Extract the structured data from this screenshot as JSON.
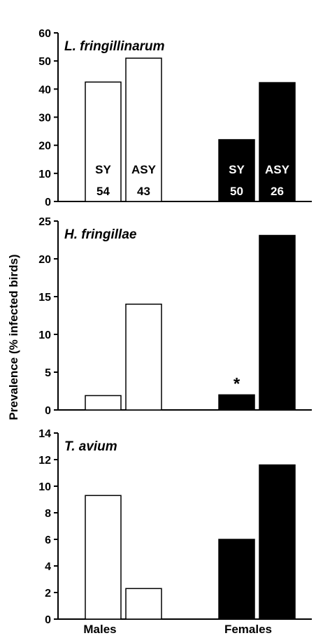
{
  "figure": {
    "ylabel": "Prevalence (% infected birds)",
    "group_labels": [
      "Males",
      "Females"
    ]
  },
  "colors": {
    "male_fill": "#ffffff",
    "female_fill": "#000000",
    "stroke": "#000000"
  },
  "chart_data": [
    {
      "type": "bar",
      "title": "L. fringillinarum",
      "categories": [
        "Males SY",
        "Males ASY",
        "Females SY",
        "Females ASY"
      ],
      "values": [
        42.5,
        51.0,
        22.0,
        42.3
      ],
      "bar_labels": [
        [
          "SY",
          "54"
        ],
        [
          "ASY",
          "43"
        ],
        [
          "SY",
          "50"
        ],
        [
          "ASY",
          "26"
        ]
      ],
      "ylim": [
        0,
        60
      ],
      "yticks": [
        0,
        10,
        20,
        30,
        40,
        50,
        60
      ],
      "annotations": []
    },
    {
      "type": "bar",
      "title": "H. fringillae",
      "categories": [
        "Males SY",
        "Males ASY",
        "Females SY",
        "Females ASY"
      ],
      "values": [
        1.9,
        14.0,
        2.0,
        23.1
      ],
      "ylim": [
        0,
        25
      ],
      "yticks": [
        0,
        5,
        10,
        15,
        20,
        25
      ],
      "annotations": [
        {
          "bar": 2,
          "text": "*"
        }
      ]
    },
    {
      "type": "bar",
      "title": "T. avium",
      "categories": [
        "Males SY",
        "Males ASY",
        "Females SY",
        "Females ASY"
      ],
      "values": [
        9.3,
        2.3,
        6.0,
        11.6
      ],
      "ylim": [
        0,
        14
      ],
      "yticks": [
        0,
        2,
        4,
        6,
        8,
        10,
        12,
        14
      ],
      "annotations": []
    }
  ]
}
